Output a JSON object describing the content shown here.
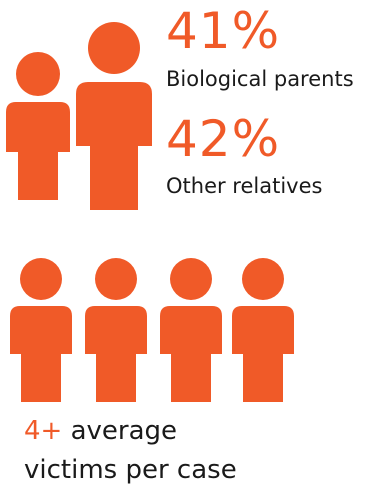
{
  "colors": {
    "accent": "#f05a28",
    "text": "#1a1a1a"
  },
  "icons": {
    "parents_group": [
      "person-icon",
      "person-icon"
    ],
    "victims_group": [
      "person-icon",
      "person-icon",
      "person-icon",
      "person-icon"
    ]
  },
  "stats": [
    {
      "value": "41%",
      "label": "Biological parents"
    },
    {
      "value": "42%",
      "label": "Other relatives"
    }
  ],
  "average": {
    "value": "4+",
    "line1": "average",
    "line2": "victims per case"
  }
}
